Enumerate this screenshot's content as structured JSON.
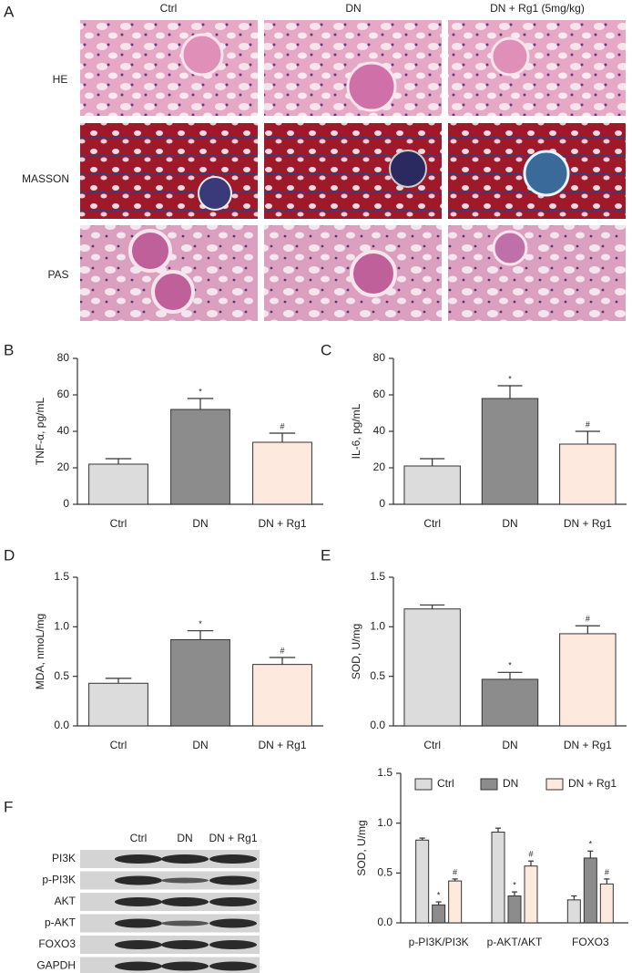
{
  "panel_a": {
    "label": "A",
    "columns": [
      "Ctrl",
      "DN",
      "DN + Rg1 (5mg/kg)"
    ],
    "rows": [
      "HE",
      "MASSON",
      "PAS"
    ]
  },
  "blot": {
    "label": "F",
    "columns": [
      "Ctrl",
      "DN",
      "DN + Rg1"
    ],
    "rows": [
      "PI3K",
      "p-PI3K",
      "AKT",
      "p-AKT",
      "FOXO3",
      "GAPDH"
    ]
  },
  "chart_data": [
    {
      "type": "bar",
      "panel": "B",
      "ylabel": "TNF-α, pg/mL",
      "categories": [
        "Ctrl",
        "DN",
        "DN + Rg1"
      ],
      "values": [
        22,
        52,
        34
      ],
      "errors": [
        3,
        6,
        5
      ],
      "markers": [
        null,
        "*",
        "#"
      ],
      "colors": [
        "#dcdcdc",
        "#8c8c8c",
        "#fde9dd"
      ],
      "ylim": [
        0,
        80
      ],
      "yticks": [
        0,
        20,
        40,
        60,
        80
      ]
    },
    {
      "type": "bar",
      "panel": "C",
      "ylabel": "IL-6, pg/mL",
      "categories": [
        "Ctrl",
        "DN",
        "DN + Rg1"
      ],
      "values": [
        21,
        58,
        33
      ],
      "errors": [
        4,
        7,
        7
      ],
      "markers": [
        null,
        "*",
        "#"
      ],
      "colors": [
        "#dcdcdc",
        "#8c8c8c",
        "#fde9dd"
      ],
      "ylim": [
        0,
        80
      ],
      "yticks": [
        0,
        20,
        40,
        60,
        80
      ]
    },
    {
      "type": "bar",
      "panel": "D",
      "ylabel": "MDA, nmoL/mg",
      "categories": [
        "Ctrl",
        "DN",
        "DN + Rg1"
      ],
      "values": [
        0.43,
        0.87,
        0.62
      ],
      "errors": [
        0.05,
        0.09,
        0.07
      ],
      "markers": [
        null,
        "*",
        "#"
      ],
      "colors": [
        "#dcdcdc",
        "#8c8c8c",
        "#fde9dd"
      ],
      "ylim": [
        0,
        1.5
      ],
      "yticks": [
        {
          "value": 0,
          "label": "0.0"
        },
        0.5,
        {
          "value": 1,
          "label": "1.0"
        },
        1.5
      ]
    },
    {
      "type": "bar",
      "panel": "E",
      "ylabel": "SOD, U/mg",
      "categories": [
        "Ctrl",
        "DN",
        "DN + Rg1"
      ],
      "values": [
        1.18,
        0.47,
        0.93
      ],
      "errors": [
        0.04,
        0.07,
        0.08
      ],
      "markers": [
        null,
        "*",
        "#"
      ],
      "colors": [
        "#dcdcdc",
        "#8c8c8c",
        "#fde9dd"
      ],
      "ylim": [
        0,
        1.5
      ],
      "yticks": [
        {
          "value": 0,
          "label": "0.0"
        },
        0.5,
        {
          "value": 1,
          "label": "1.0"
        },
        1.5
      ]
    },
    {
      "type": "grouped_bar",
      "ylabel": "SOD, U/mg",
      "categories": [
        "p-PI3K/PI3K",
        "p-AKT/AKT",
        "FOXO3"
      ],
      "legend": "top",
      "series": [
        {
          "name": "Ctrl",
          "color": "#dcdcdc",
          "values": [
            0.83,
            0.91,
            0.23
          ],
          "errors": [
            0.02,
            0.04,
            0.04
          ],
          "markers": [
            null,
            null,
            null
          ]
        },
        {
          "name": "DN",
          "color": "#8c8c8c",
          "values": [
            0.18,
            0.27,
            0.65
          ],
          "errors": [
            0.03,
            0.04,
            0.07
          ],
          "markers": [
            "*",
            "*",
            "*"
          ]
        },
        {
          "name": "DN + Rg1",
          "color": "#fde9dd",
          "values": [
            0.42,
            0.57,
            0.39
          ],
          "errors": [
            0.02,
            0.05,
            0.05
          ],
          "markers": [
            "#",
            "#",
            "#"
          ]
        }
      ],
      "ylim": [
        0,
        1.5
      ],
      "yticks": [
        {
          "value": 0,
          "label": "0.0"
        },
        0.5,
        {
          "value": 1,
          "label": "1.0"
        },
        1.5
      ]
    }
  ]
}
